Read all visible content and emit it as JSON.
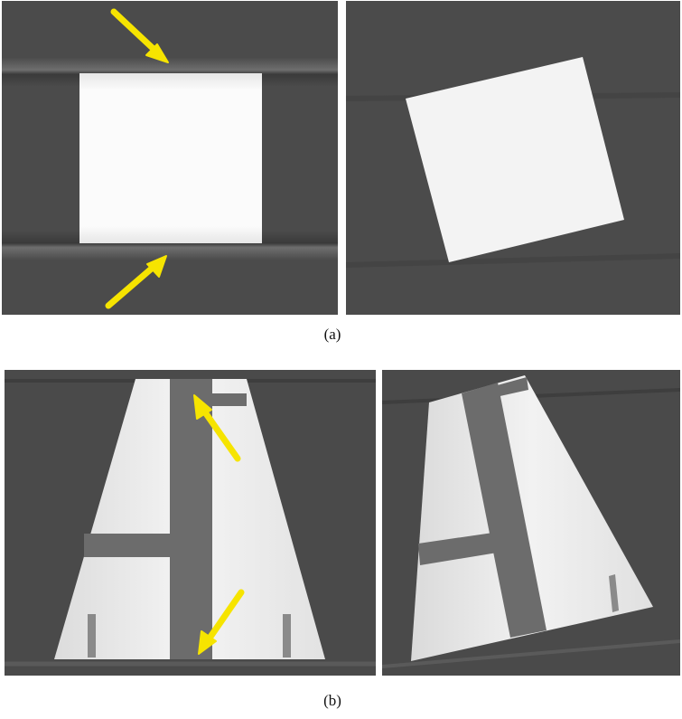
{
  "figure": {
    "captions": {
      "a": "(a)",
      "b": "(b)"
    },
    "colors": {
      "background": "#4a4a4a",
      "phantom": "#f2f2f2",
      "arrow": "#f6e400"
    },
    "icons": {
      "arrow": "arrow-icon"
    }
  }
}
